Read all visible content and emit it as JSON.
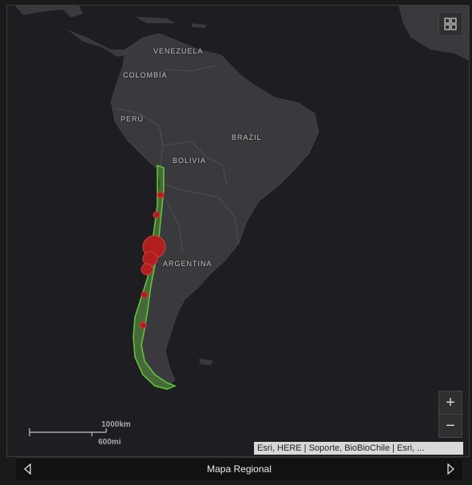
{
  "map": {
    "labels": {
      "venezuela": "VENEZUELA",
      "colombia": "COLOMBIA",
      "peru": "PERÚ",
      "brazil": "BRAZIL",
      "bolivia": "BOLIVIA",
      "argentina": "ARGENTINA"
    },
    "scale": {
      "km": "1000km",
      "mi": "600mi"
    },
    "attribution": "Esri, HERE | Soporte, BioBioChile | Esri, ...",
    "zoom_in": "+",
    "zoom_out": "−",
    "colors": {
      "land": "#3a3a3e",
      "ocean": "#1d1d22",
      "chile": "#5fc436",
      "marker": "#b01e1e"
    }
  },
  "footer": {
    "title": "Mapa Regional",
    "prev_icon": "left-arrow-icon",
    "next_icon": "right-arrow-icon"
  },
  "toolbar": {
    "grid_icon": "basemap-gallery-icon"
  }
}
